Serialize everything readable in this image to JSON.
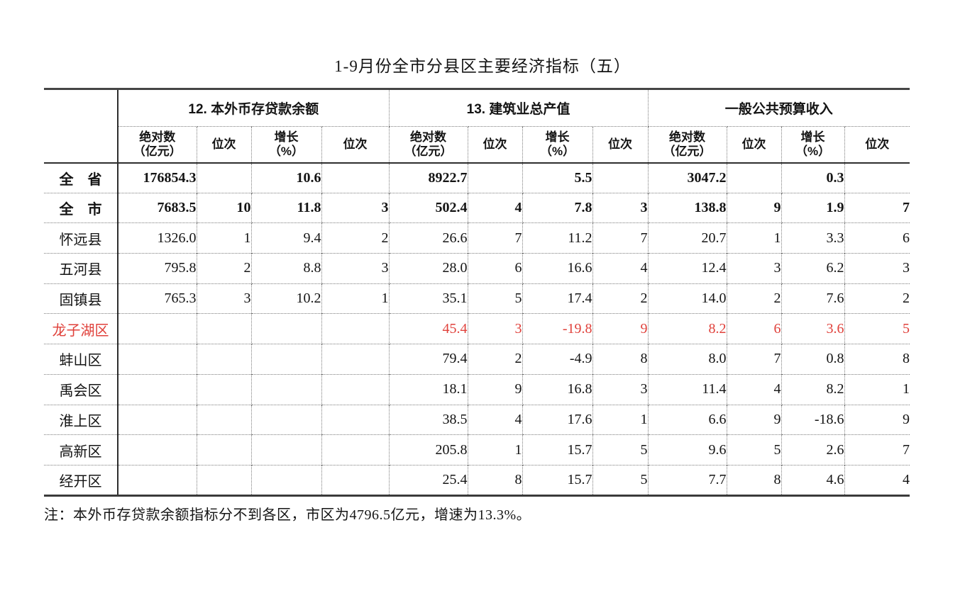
{
  "title": "1-9月份全市分县区主要经济指标（五）",
  "table": {
    "corner": "",
    "groups": [
      {
        "label": "12. 本外币存贷款余额"
      },
      {
        "label": "13. 建筑业总产值"
      },
      {
        "label": "一般公共预算收入"
      }
    ],
    "sub_headers": {
      "absolute_line1": "绝对数",
      "absolute_line2": "（亿元）",
      "rank": "位次",
      "growth_line1": "增长",
      "growth_line2": "（%）"
    },
    "rows": [
      {
        "label": "全　省",
        "style": "bold",
        "values": [
          "176854.3",
          "",
          "10.6",
          "",
          "8922.7",
          "",
          "5.5",
          "",
          "3047.2",
          "",
          "0.3",
          ""
        ]
      },
      {
        "label": "全　市",
        "style": "bold",
        "values": [
          "7683.5",
          "10",
          "11.8",
          "3",
          "502.4",
          "4",
          "7.8",
          "3",
          "138.8",
          "9",
          "1.9",
          "7"
        ]
      },
      {
        "label": "怀远县",
        "style": "normal",
        "values": [
          "1326.0",
          "1",
          "9.4",
          "2",
          "26.6",
          "7",
          "11.2",
          "7",
          "20.7",
          "1",
          "3.3",
          "6"
        ]
      },
      {
        "label": "五河县",
        "style": "normal",
        "values": [
          "795.8",
          "2",
          "8.8",
          "3",
          "28.0",
          "6",
          "16.6",
          "4",
          "12.4",
          "3",
          "6.2",
          "3"
        ]
      },
      {
        "label": "固镇县",
        "style": "normal",
        "values": [
          "765.3",
          "3",
          "10.2",
          "1",
          "35.1",
          "5",
          "17.4",
          "2",
          "14.0",
          "2",
          "7.6",
          "2"
        ]
      },
      {
        "label": "龙子湖区",
        "style": "red",
        "values": [
          "",
          "",
          "",
          "",
          "45.4",
          "3",
          "-19.8",
          "9",
          "8.2",
          "6",
          "3.6",
          "5"
        ]
      },
      {
        "label": "蚌山区",
        "style": "normal",
        "values": [
          "",
          "",
          "",
          "",
          "79.4",
          "2",
          "-4.9",
          "8",
          "8.0",
          "7",
          "0.8",
          "8"
        ]
      },
      {
        "label": "禹会区",
        "style": "normal",
        "values": [
          "",
          "",
          "",
          "",
          "18.1",
          "9",
          "16.8",
          "3",
          "11.4",
          "4",
          "8.2",
          "1"
        ]
      },
      {
        "label": "淮上区",
        "style": "normal",
        "values": [
          "",
          "",
          "",
          "",
          "38.5",
          "4",
          "17.6",
          "1",
          "6.6",
          "9",
          "-18.6",
          "9"
        ]
      },
      {
        "label": "高新区",
        "style": "normal",
        "values": [
          "",
          "",
          "",
          "",
          "205.8",
          "1",
          "15.7",
          "5",
          "9.6",
          "5",
          "2.6",
          "7"
        ]
      },
      {
        "label": "经开区",
        "style": "normal",
        "values": [
          "",
          "",
          "",
          "",
          "25.4",
          "8",
          "15.7",
          "5",
          "7.7",
          "8",
          "4.6",
          "4"
        ]
      }
    ]
  },
  "note": "注：本外币存贷款余额指标分不到各区，市区为4796.5亿元，增速为13.3%。",
  "colors": {
    "highlight_red": "#e0413b",
    "line_dark": "#2e2e2e",
    "line_dotted": "#7c7c7c"
  }
}
